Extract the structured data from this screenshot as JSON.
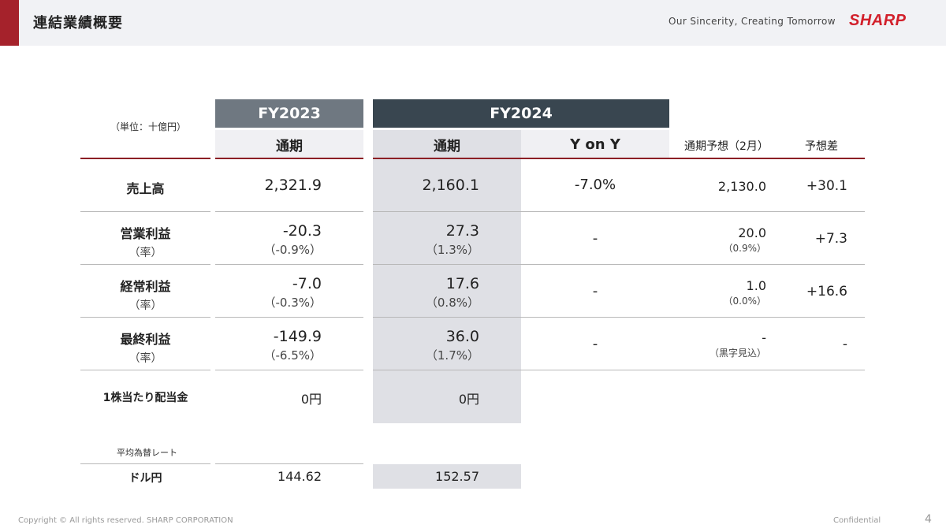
{
  "header": {
    "title": "連結業績概要",
    "tagline": "Our Sincerity, Creating Tomorrow",
    "logo": "SHARP"
  },
  "table": {
    "unit": "（単位：十億円）",
    "fy2023": "FY2023",
    "fy2024": "FY2024",
    "col_full_year_23": "通期",
    "col_full_year_24": "通期",
    "col_yoy": "Y on Y",
    "col_forecast": "通期予想（2月）",
    "col_diff": "予想差",
    "rows": [
      {
        "label": "売上高",
        "sub": "",
        "fy23": "2,321.9",
        "fy23_pct": "",
        "fy24": "2,160.1",
        "fy24_pct": "",
        "yoy": "-7.0%",
        "forecast": "2,130.0",
        "forecast_pct": "",
        "diff": "+30.1"
      },
      {
        "label": "営業利益",
        "sub": "（率）",
        "fy23": "-20.3",
        "fy23_pct": "（-0.9%）",
        "fy24": "27.3",
        "fy24_pct": "（1.3%）",
        "yoy": "-",
        "forecast": "20.0",
        "forecast_pct": "（0.9%）",
        "diff": "+7.3"
      },
      {
        "label": "経常利益",
        "sub": "（率）",
        "fy23": "-7.0",
        "fy23_pct": "（-0.3%）",
        "fy24": "17.6",
        "fy24_pct": "（0.8%）",
        "yoy": "-",
        "forecast": "1.0",
        "forecast_pct": "（0.0%）",
        "diff": "+16.6"
      },
      {
        "label": "最終利益",
        "sub": "（率）",
        "fy23": "-149.9",
        "fy23_pct": "（-6.5%）",
        "fy24": "36.0",
        "fy24_pct": "（1.7%）",
        "yoy": "-",
        "forecast": "-",
        "forecast_pct": "（黒字見込）",
        "diff": "-"
      },
      {
        "label": "1株当たり配当金",
        "sub": "",
        "fy23": "0円",
        "fy23_pct": "",
        "fy24": "0円",
        "fy24_pct": "",
        "yoy": "",
        "forecast": "",
        "forecast_pct": "",
        "diff": ""
      }
    ],
    "fx_label": "平均為替レート",
    "fx_row": {
      "label": "ドル円",
      "fy23": "144.62",
      "fy24": "152.57"
    }
  },
  "footer": {
    "copyright": "Copyright © All rights reserved. SHARP CORPORATION",
    "confidential": "Confidential",
    "page": "4"
  },
  "colors": {
    "accent_red": "#a5222b",
    "fy2023_header": "#6f7881",
    "fy2024_header": "#394650",
    "highlight_column": "#dfe0e5"
  }
}
